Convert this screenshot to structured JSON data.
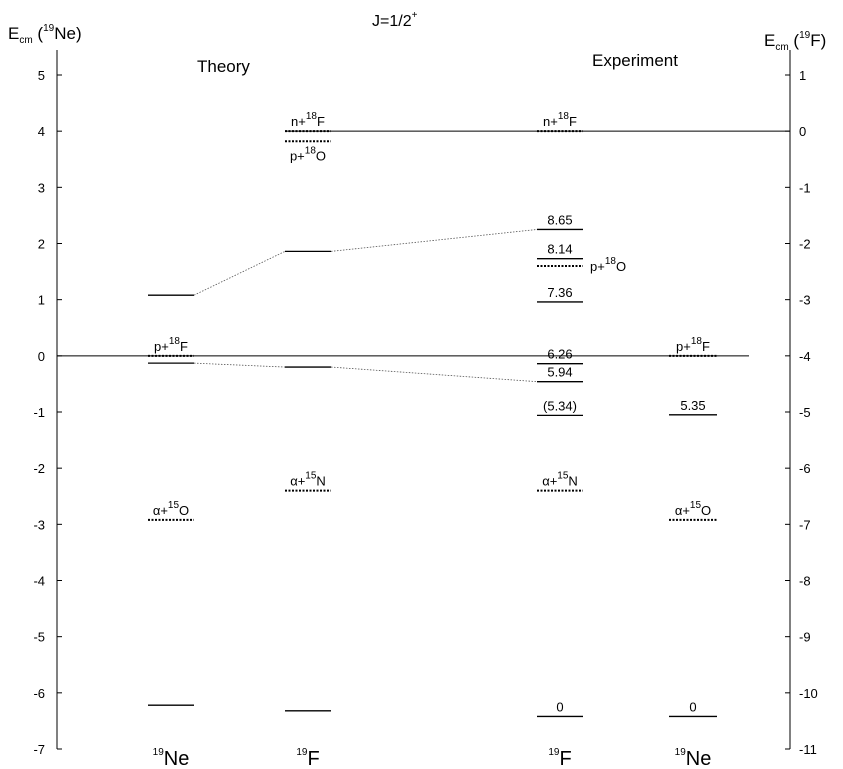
{
  "title": "J=1/2+",
  "title_main": "J=1/2",
  "title_sup": "+",
  "left_axis": {
    "label": "Ecm (19Ne)",
    "E": "E",
    "sub": "cm",
    "paren_open": " (",
    "sup": "19",
    "nuc": "Ne",
    "paren_close": ")",
    "ticks": [
      "5",
      "4",
      "3",
      "2",
      "1",
      "0",
      "-1",
      "-2",
      "-3",
      "-4",
      "-5",
      "-6",
      "-7"
    ],
    "range": [
      -7,
      5.5
    ]
  },
  "right_axis": {
    "label": "Ecm (19F)",
    "E": "E",
    "sub": "cm",
    "paren_open": " (",
    "sup": "19",
    "nuc": "F",
    "paren_close": ")",
    "ticks": [
      "1",
      "0",
      "-1",
      "-2",
      "-3",
      "-4",
      "-5",
      "-6",
      "-7",
      "-8",
      "-9",
      "-10",
      "-11"
    ],
    "offset_from_left": -4
  },
  "headings": {
    "theory": "Theory",
    "experiment": "Experiment"
  },
  "columns": [
    {
      "key": "th_ne",
      "mass": "19",
      "nuc": "Ne"
    },
    {
      "key": "th_f",
      "mass": "19",
      "nuc": "F"
    },
    {
      "key": "ex_f",
      "mass": "19",
      "nuc": "F"
    },
    {
      "key": "ex_ne",
      "mass": "19",
      "nuc": "Ne"
    }
  ],
  "reference_lines": [
    {
      "E": 4,
      "from": "th_f",
      "to": "right_axis"
    },
    {
      "E": 0,
      "from": "left_axis",
      "to": "ex_ne"
    }
  ],
  "levels": [
    {
      "col": "th_ne",
      "E": 1.08,
      "style": "solid"
    },
    {
      "col": "th_ne",
      "E": -0.13,
      "style": "solid"
    },
    {
      "col": "th_ne",
      "E": -6.22,
      "style": "solid"
    },
    {
      "col": "th_f",
      "E": 1.86,
      "style": "solid"
    },
    {
      "col": "th_f",
      "E": -0.2,
      "style": "solid"
    },
    {
      "col": "th_f",
      "E": -6.32,
      "style": "solid"
    },
    {
      "col": "ex_f",
      "E": 2.25,
      "style": "solid",
      "label": "8.65"
    },
    {
      "col": "ex_f",
      "E": 1.73,
      "style": "solid",
      "label": "8.14"
    },
    {
      "col": "ex_f",
      "E": 0.96,
      "style": "solid",
      "label": "7.36"
    },
    {
      "col": "ex_f",
      "E": -0.14,
      "style": "solid",
      "label": "6.26"
    },
    {
      "col": "ex_f",
      "E": -0.46,
      "style": "solid",
      "label": "5.94"
    },
    {
      "col": "ex_f",
      "E": -1.06,
      "style": "solid",
      "label": "(5.34)"
    },
    {
      "col": "ex_f",
      "E": -6.42,
      "style": "solid",
      "label": "0"
    },
    {
      "col": "ex_ne",
      "E": -1.05,
      "style": "solid",
      "label": "5.35"
    },
    {
      "col": "ex_ne",
      "E": -6.42,
      "style": "solid",
      "label": "0"
    }
  ],
  "thresholds": [
    {
      "col": "th_ne",
      "E": 0.0,
      "pre": "p+",
      "sup": "18",
      "nuc": "F",
      "pos": "above"
    },
    {
      "col": "th_ne",
      "E": -2.92,
      "pre": "α+",
      "sup": "15",
      "nuc": "O",
      "pos": "above"
    },
    {
      "col": "th_f",
      "E": 4.0,
      "pre": "n+",
      "sup": "18",
      "nuc": "F",
      "pos": "above"
    },
    {
      "col": "th_f",
      "E": 3.82,
      "pre": "p+",
      "sup": "18",
      "nuc": "O",
      "pos": "below"
    },
    {
      "col": "th_f",
      "E": -2.4,
      "pre": "α+",
      "sup": "15",
      "nuc": "N",
      "pos": "above"
    },
    {
      "col": "ex_f",
      "E": 4.0,
      "pre": "n+",
      "sup": "18",
      "nuc": "F",
      "pos": "above"
    },
    {
      "col": "ex_f",
      "E": 1.6,
      "pre": "p+",
      "sup": "18",
      "nuc": "O",
      "pos": "right"
    },
    {
      "col": "ex_f",
      "E": -2.4,
      "pre": "α+",
      "sup": "15",
      "nuc": "N",
      "pos": "above"
    },
    {
      "col": "ex_ne",
      "E": 0.0,
      "pre": "p+",
      "sup": "18",
      "nuc": "F",
      "pos": "above"
    },
    {
      "col": "ex_ne",
      "E": -2.92,
      "pre": "α+",
      "sup": "15",
      "nuc": "O",
      "pos": "above"
    }
  ],
  "connectors": [
    {
      "from": {
        "col": "th_ne",
        "E": 1.08
      },
      "to": {
        "col": "th_f",
        "E": 1.86
      }
    },
    {
      "from": {
        "col": "th_f",
        "E": 1.86
      },
      "to": {
        "col": "ex_f",
        "E": 2.25
      }
    },
    {
      "from": {
        "col": "th_ne",
        "E": -0.13
      },
      "to": {
        "col": "th_f",
        "E": -0.2
      }
    },
    {
      "from": {
        "col": "th_f",
        "E": -0.2
      },
      "to": {
        "col": "ex_f",
        "E": -0.46
      }
    }
  ]
}
